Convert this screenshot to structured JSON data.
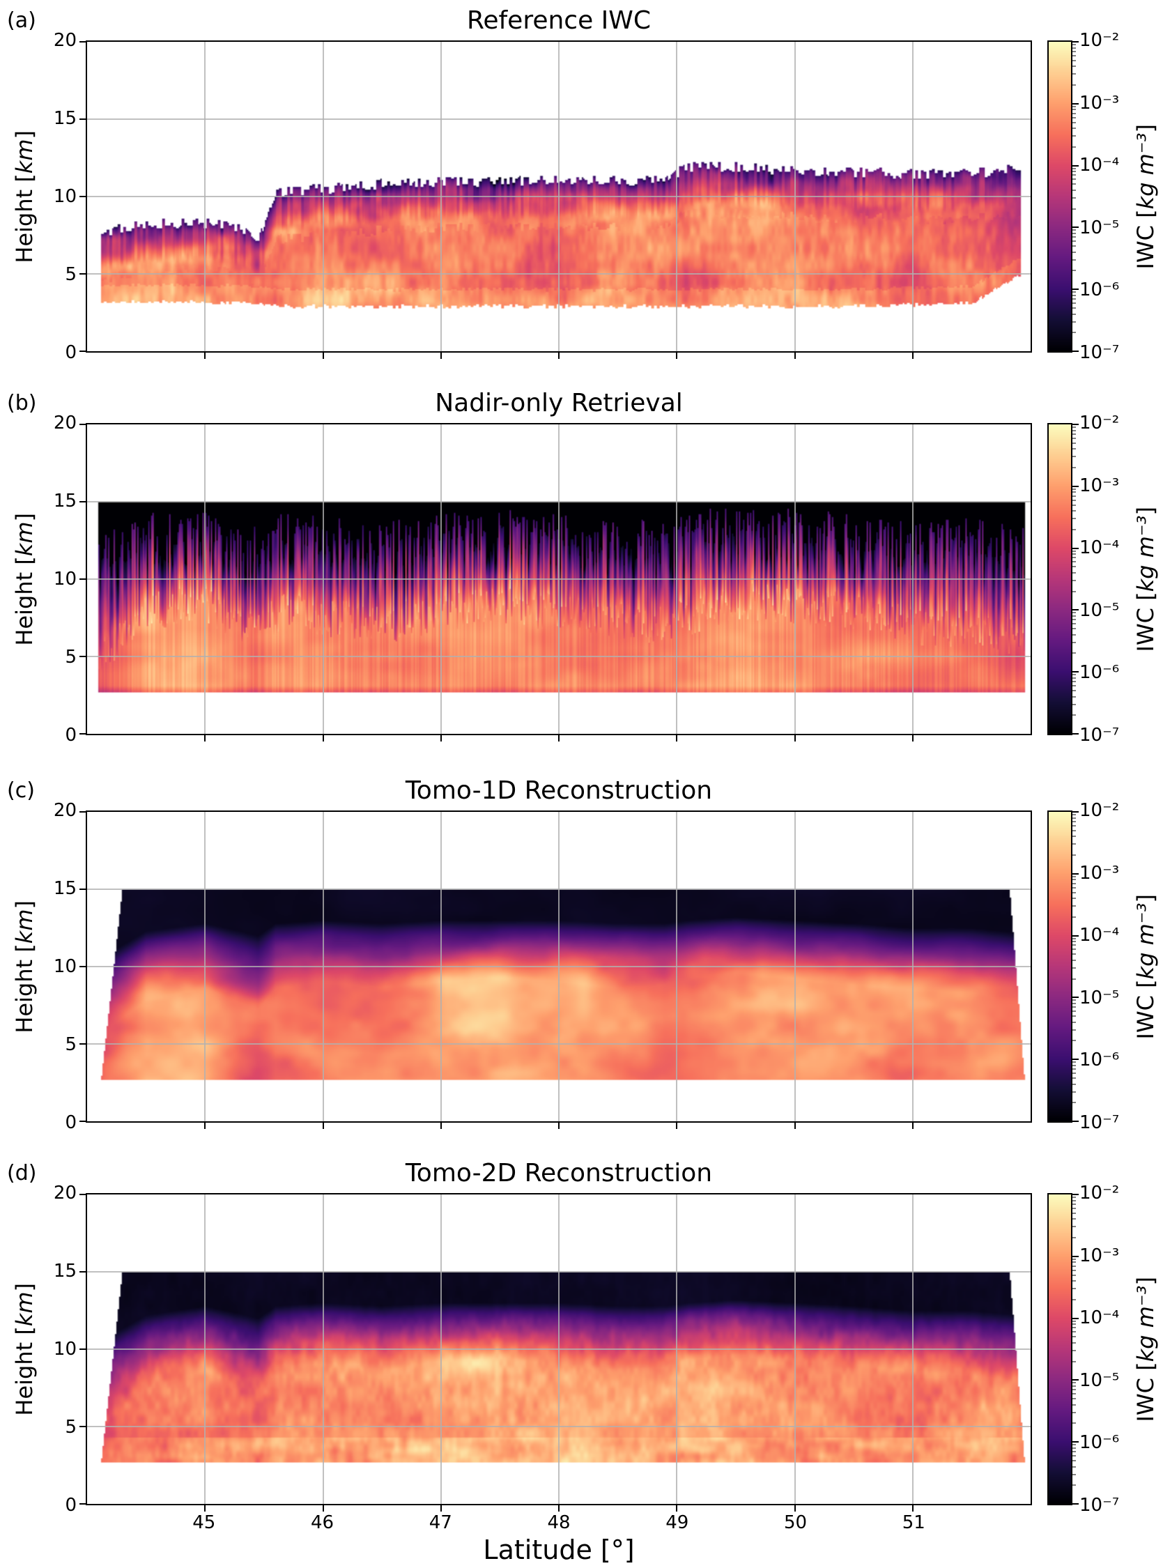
{
  "figure": {
    "xlabel": "Latitude [°]",
    "ylabel_prefix": "Height [",
    "ylabel_unit": "km",
    "ylabel_suffix": "]",
    "cb_label_prefix": "IWC [",
    "cb_label_unit": "kg m⁻³",
    "cb_label_suffix": "]",
    "background": "#ffffff",
    "grid_color": "#b0b0b0"
  },
  "chart_data": [
    {
      "type": "heatmap",
      "panel_letter": "(a)",
      "title": "Reference IWC",
      "xlim": [
        44,
        52
      ],
      "ylim": [
        0,
        20
      ],
      "xticks": [
        45,
        46,
        47,
        48,
        49,
        50,
        51
      ],
      "yticks": [
        0,
        5,
        10,
        15,
        20
      ],
      "grid_x": [
        45,
        46,
        47,
        48,
        49,
        50,
        51
      ],
      "grid_y": [
        5,
        10,
        15
      ],
      "colorbar": {
        "colormap": "magma",
        "scale": "log",
        "clim_log10": [
          -7,
          -2
        ],
        "tick_labels": [
          "10⁻²",
          "10⁻³",
          "10⁻⁴",
          "10⁻⁵",
          "10⁻⁶",
          "10⁻⁷"
        ]
      },
      "field": {
        "style": "reference",
        "seed": 11,
        "lat_start": 44.12,
        "lat_end": 51.92,
        "lat_samples": [
          44.1,
          44.5,
          45.0,
          45.3,
          45.45,
          45.6,
          46.0,
          46.5,
          47.0,
          47.5,
          48.0,
          48.5,
          48.9,
          49.1,
          49.5,
          50.0,
          50.5,
          51.0,
          51.5,
          51.9
        ],
        "cloud_top_km": [
          7.7,
          8.2,
          8.3,
          8.0,
          7.0,
          10.2,
          10.5,
          10.8,
          11.0,
          11.0,
          11.1,
          11.0,
          11.1,
          12.0,
          11.9,
          11.7,
          11.6,
          11.5,
          11.5,
          11.8
        ],
        "cloud_base_km": [
          3.1,
          3.2,
          3.2,
          3.1,
          3.1,
          2.9,
          2.9,
          2.9,
          2.9,
          2.9,
          2.9,
          2.9,
          2.9,
          2.9,
          2.9,
          2.9,
          2.9,
          3.0,
          3.1,
          4.9
        ],
        "core_log10_iwc": [
          -3.0,
          -3.0,
          -3.1,
          -3.3,
          -3.5,
          -3.4,
          -3.3,
          -3.4,
          -3.3,
          -3.2,
          -3.4,
          -3.3,
          -3.3,
          -3.5,
          -3.2,
          -3.3,
          -3.4,
          -3.5,
          -3.6,
          -4.2
        ]
      }
    },
    {
      "type": "heatmap",
      "panel_letter": "(b)",
      "title": "Nadir-only Retrieval",
      "xlim": [
        44,
        52
      ],
      "ylim": [
        0,
        20
      ],
      "xticks": [
        45,
        46,
        47,
        48,
        49,
        50,
        51
      ],
      "yticks": [
        0,
        5,
        10,
        15,
        20
      ],
      "grid_x": [
        45,
        46,
        47,
        48,
        49,
        50,
        51
      ],
      "grid_y": [
        5,
        10,
        15
      ],
      "colorbar": {
        "colormap": "magma",
        "scale": "log",
        "clim_log10": [
          -7,
          -2
        ],
        "tick_labels": [
          "10⁻²",
          "10⁻³",
          "10⁻⁴",
          "10⁻⁵",
          "10⁻⁶",
          "10⁻⁷"
        ]
      },
      "field": {
        "style": "nadir",
        "seed": 22,
        "lat_start": 44.1,
        "lat_end": 51.95,
        "domain_base_km": 2.7,
        "domain_top_km": 15,
        "lat_samples": [
          44.1,
          44.5,
          45.0,
          45.3,
          45.45,
          45.6,
          46.0,
          46.5,
          47.0,
          47.5,
          48.0,
          48.5,
          48.9,
          49.1,
          49.5,
          50.0,
          50.5,
          51.0,
          51.5,
          51.9
        ],
        "core_top_km": [
          5.0,
          8.0,
          8.3,
          7.2,
          6.8,
          7.8,
          7.6,
          7.0,
          7.8,
          8.3,
          7.8,
          7.2,
          7.0,
          7.6,
          8.6,
          8.3,
          7.8,
          7.0,
          6.8,
          6.3
        ],
        "streak_top_km": [
          11.0,
          12.6,
          12.6,
          12.0,
          11.6,
          12.5,
          12.5,
          12.0,
          12.5,
          12.8,
          12.5,
          12.0,
          12.2,
          12.6,
          13.0,
          12.8,
          12.5,
          12.0,
          12.3,
          11.8
        ],
        "core_log10_iwc": [
          -3.9,
          -2.9,
          -3.0,
          -3.4,
          -3.5,
          -3.2,
          -3.3,
          -3.4,
          -3.2,
          -3.0,
          -3.2,
          -3.4,
          -3.4,
          -3.2,
          -3.0,
          -3.1,
          -3.3,
          -3.4,
          -3.3,
          -3.6
        ]
      }
    },
    {
      "type": "heatmap",
      "panel_letter": "(c)",
      "title": "Tomo-1D Reconstruction",
      "xlim": [
        44,
        52
      ],
      "ylim": [
        0,
        20
      ],
      "xticks": [
        45,
        46,
        47,
        48,
        49,
        50,
        51
      ],
      "yticks": [
        0,
        5,
        10,
        15,
        20
      ],
      "grid_x": [
        45,
        46,
        47,
        48,
        49,
        50,
        51
      ],
      "grid_y": [
        5,
        10,
        15
      ],
      "colorbar": {
        "colormap": "magma",
        "scale": "log",
        "clim_log10": [
          -7,
          -2
        ],
        "tick_labels": [
          "10⁻²",
          "10⁻³",
          "10⁻⁴",
          "10⁻⁵",
          "10⁻⁶",
          "10⁻⁷"
        ]
      },
      "field": {
        "style": "tomo1d",
        "seed": 33,
        "lat_start": 44.12,
        "lat_end": 51.95,
        "slant": 0.18,
        "domain_base_km": 2.7,
        "domain_top_km": 15,
        "lat_samples": [
          44.1,
          44.5,
          45.0,
          45.3,
          45.45,
          45.6,
          46.0,
          46.5,
          47.0,
          47.5,
          48.0,
          48.5,
          48.9,
          49.1,
          49.5,
          50.0,
          50.5,
          51.0,
          51.5,
          51.9
        ],
        "core_top_km": [
          5.5,
          7.8,
          8.6,
          7.6,
          7.2,
          8.6,
          9.0,
          8.6,
          9.0,
          9.3,
          9.0,
          8.6,
          8.8,
          9.2,
          9.6,
          9.2,
          8.8,
          8.5,
          8.3,
          7.6
        ],
        "dark_top_km": [
          10.5,
          12.3,
          12.8,
          12.3,
          12.0,
          12.8,
          13.0,
          12.8,
          13.0,
          13.0,
          13.0,
          12.8,
          12.8,
          13.0,
          13.2,
          13.0,
          12.8,
          12.5,
          12.5,
          12.2
        ],
        "core_log10_iwc": [
          -3.8,
          -3.1,
          -3.0,
          -3.4,
          -3.5,
          -3.2,
          -3.2,
          -3.3,
          -3.1,
          -3.0,
          -3.2,
          -3.3,
          -3.3,
          -3.1,
          -3.0,
          -3.1,
          -3.2,
          -3.3,
          -3.3,
          -3.6
        ]
      }
    },
    {
      "type": "heatmap",
      "panel_letter": "(d)",
      "title": "Tomo-2D Reconstruction",
      "xlim": [
        44,
        52
      ],
      "ylim": [
        0,
        20
      ],
      "xticks": [
        45,
        46,
        47,
        48,
        49,
        50,
        51
      ],
      "yticks": [
        0,
        5,
        10,
        15,
        20
      ],
      "grid_x": [
        45,
        46,
        47,
        48,
        49,
        50,
        51
      ],
      "grid_y": [
        5,
        10,
        15
      ],
      "colorbar": {
        "colormap": "magma",
        "scale": "log",
        "clim_log10": [
          -7,
          -2
        ],
        "tick_labels": [
          "10⁻²",
          "10⁻³",
          "10⁻⁴",
          "10⁻⁵",
          "10⁻⁶",
          "10⁻⁷"
        ]
      },
      "field": {
        "style": "tomo2d",
        "seed": 44,
        "lat_start": 44.12,
        "lat_end": 51.95,
        "slant": 0.18,
        "domain_base_km": 2.7,
        "domain_top_km": 15,
        "lat_samples": [
          44.1,
          44.5,
          45.0,
          45.3,
          45.45,
          45.6,
          46.0,
          46.5,
          47.0,
          47.5,
          48.0,
          48.5,
          48.9,
          49.1,
          49.5,
          50.0,
          50.5,
          51.0,
          51.5,
          51.9
        ],
        "core_top_km": [
          5.2,
          7.4,
          8.6,
          7.6,
          7.2,
          8.8,
          9.0,
          8.6,
          9.2,
          9.4,
          9.0,
          8.6,
          8.8,
          9.3,
          9.6,
          9.3,
          9.0,
          8.5,
          8.3,
          7.8
        ],
        "dark_top_km": [
          10.5,
          12.2,
          12.8,
          12.3,
          12.0,
          12.8,
          13.0,
          12.8,
          13.0,
          13.0,
          13.0,
          12.8,
          12.8,
          13.0,
          13.2,
          13.0,
          12.8,
          12.5,
          12.5,
          12.2
        ],
        "core_log10_iwc": [
          -3.7,
          -3.1,
          -3.0,
          -3.4,
          -3.5,
          -3.1,
          -3.2,
          -3.3,
          -3.1,
          -3.0,
          -3.2,
          -3.3,
          -3.3,
          -3.1,
          -3.0,
          -3.1,
          -3.2,
          -3.3,
          -3.3,
          -3.6
        ]
      }
    }
  ]
}
